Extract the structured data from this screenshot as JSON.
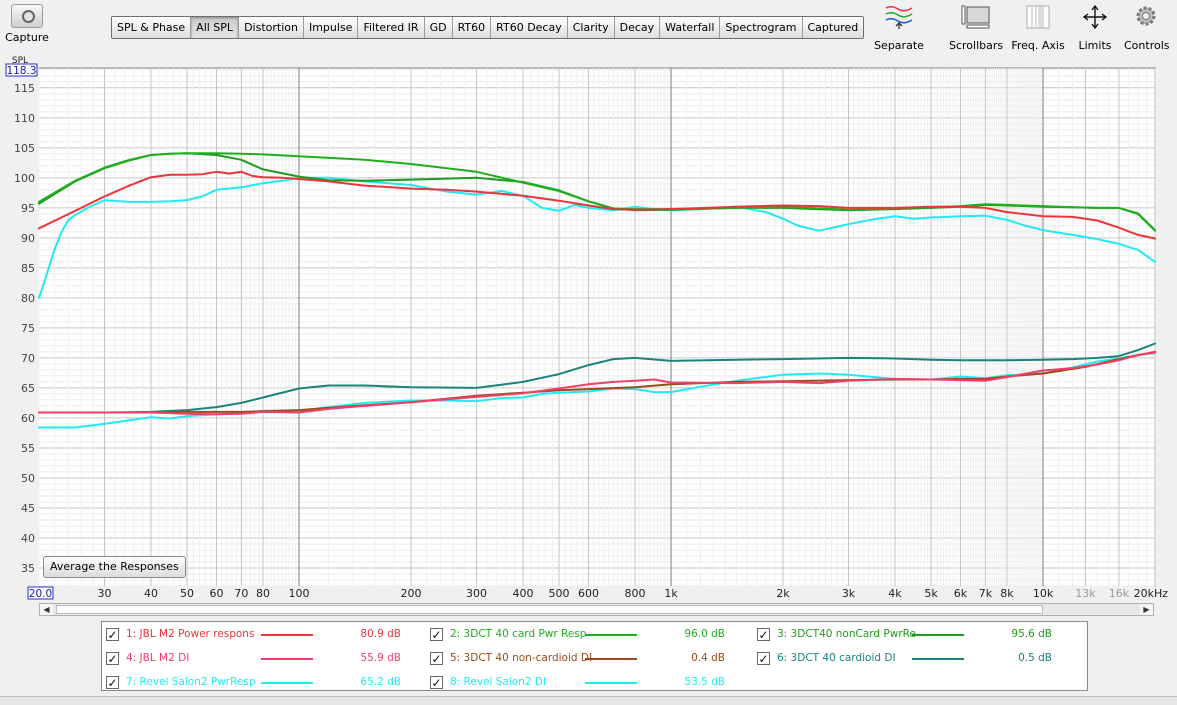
{
  "toolbar": {
    "capture_label": "Capture",
    "tabs": [
      "SPL & Phase",
      "All SPL",
      "Distortion",
      "Impulse",
      "Filtered IR",
      "GD",
      "RT60",
      "RT60 Decay",
      "Clarity",
      "Decay",
      "Waterfall",
      "Spectrogram",
      "Captured"
    ],
    "active_tab": "All SPL",
    "tools": [
      {
        "label": "Separate",
        "icon": "separate-icon"
      },
      {
        "label": "Scrollbars",
        "icon": "scrollbars-icon"
      },
      {
        "label": "Freq. Axis",
        "icon": "freq-axis-icon"
      },
      {
        "label": "Limits",
        "icon": "limits-icon"
      },
      {
        "label": "Controls",
        "icon": "gear-icon"
      }
    ]
  },
  "average_button": "Average the Responses",
  "colors": {
    "jbl_pwr": "#e8363c",
    "dct_card": "#1eae1e",
    "dct_noncard": "#1f9b1f",
    "jbl_di": "#ef3f6a",
    "dct_noncard_di": "#9e4a1c",
    "dct_card_di": "#19837c",
    "revel_pwr": "#22eaf0",
    "revel_di": "#22eaf0"
  },
  "legend": [
    {
      "label": "1: JBL M2 Power respons",
      "value": "80.9 dB",
      "color_key": "jbl_pwr"
    },
    {
      "label": "2: 3DCT 40 card Pwr Resp",
      "value": "96.0 dB",
      "color_key": "dct_card"
    },
    {
      "label": "3: 3DCT40 nonCard PwrRe",
      "value": "95.6 dB",
      "color_key": "dct_noncard"
    },
    {
      "label": "4: JBL M2 DI",
      "value": "55.9 dB",
      "color_key": "jbl_di"
    },
    {
      "label": "5: 3DCT 40 non-cardioid DI",
      "value": "0.4 dB",
      "color_key": "dct_noncard_di"
    },
    {
      "label": "6: 3DCT 40 cardioid DI",
      "value": "0.5 dB",
      "color_key": "dct_card_di"
    },
    {
      "label": "7: Revel Salon2 PwrResp",
      "value": "65.2 dB",
      "color_key": "revel_pwr"
    },
    {
      "label": "8: Revel Salon2 DI",
      "value": "53.5 dB",
      "color_key": "revel_di"
    }
  ],
  "chart_data": {
    "type": "line",
    "ylabel": "SPL",
    "y_top_readout": "118.3",
    "x_left_readout": "20.0",
    "ylim": [
      32,
      118.3
    ],
    "xlim": [
      20,
      20000
    ],
    "x_scale": "log",
    "y_ticks": [
      35,
      40,
      45,
      50,
      55,
      60,
      65,
      70,
      75,
      80,
      85,
      90,
      95,
      100,
      105,
      110,
      115
    ],
    "x_ticks": [
      {
        "v": 30,
        "t": "30"
      },
      {
        "v": 40,
        "t": "40"
      },
      {
        "v": 50,
        "t": "50"
      },
      {
        "v": 60,
        "t": "60"
      },
      {
        "v": 70,
        "t": "70"
      },
      {
        "v": 80,
        "t": "80"
      },
      {
        "v": 100,
        "t": "100"
      },
      {
        "v": 200,
        "t": "200"
      },
      {
        "v": 300,
        "t": "300"
      },
      {
        "v": 400,
        "t": "400"
      },
      {
        "v": 500,
        "t": "500"
      },
      {
        "v": 600,
        "t": "600"
      },
      {
        "v": 800,
        "t": "800"
      },
      {
        "v": 1000,
        "t": "1k"
      },
      {
        "v": 2000,
        "t": "2k"
      },
      {
        "v": 3000,
        "t": "3k"
      },
      {
        "v": 4000,
        "t": "4k"
      },
      {
        "v": 5000,
        "t": "5k"
      },
      {
        "v": 6000,
        "t": "6k"
      },
      {
        "v": 7000,
        "t": "7k"
      },
      {
        "v": 8000,
        "t": "8k"
      },
      {
        "v": 10000,
        "t": "10k"
      },
      {
        "v": 13000,
        "t": "13k",
        "dim": true
      },
      {
        "v": 16000,
        "t": "16k",
        "dim": true
      },
      {
        "v": 20000,
        "t": "20kHz"
      }
    ],
    "grid": true,
    "series": [
      {
        "name": "1: JBL M2 Power respons",
        "color_key": "jbl_pwr",
        "x": [
          20,
          25,
          30,
          35,
          40,
          45,
          50,
          55,
          60,
          65,
          70,
          75,
          80,
          90,
          100,
          120,
          150,
          200,
          250,
          300,
          400,
          500,
          600,
          700,
          800,
          1000,
          1500,
          2000,
          2500,
          3000,
          4000,
          5000,
          6000,
          7000,
          8000,
          10000,
          12000,
          14000,
          16000,
          18000,
          20000
        ],
        "y": [
          91.6,
          94.5,
          96.9,
          98.7,
          100.1,
          100.5,
          100.5,
          100.6,
          101.0,
          100.7,
          101.0,
          100.3,
          100.1,
          100.0,
          99.8,
          99.4,
          98.7,
          98.2,
          98.0,
          97.7,
          97.0,
          96.2,
          95.4,
          94.8,
          94.7,
          94.8,
          95.2,
          95.4,
          95.3,
          95.0,
          95.0,
          95.2,
          95.2,
          95.0,
          94.3,
          93.6,
          93.5,
          92.9,
          91.7,
          90.5,
          89.9
        ]
      },
      {
        "name": "2: 3DCT 40 card Pwr Resp",
        "color_key": "dct_card",
        "x": [
          20,
          25,
          30,
          35,
          40,
          45,
          50,
          60,
          70,
          80,
          100,
          150,
          200,
          300,
          400,
          500,
          600,
          700,
          800,
          1000,
          1500,
          2000,
          3000,
          4000,
          5000,
          6000,
          7000,
          8000,
          10000,
          12000,
          14000,
          16000,
          18000,
          20000
        ],
        "y": [
          96.0,
          99.5,
          101.7,
          103.0,
          103.8,
          104.0,
          104.1,
          104.1,
          104.0,
          103.9,
          103.6,
          103.0,
          102.3,
          101.0,
          99.2,
          97.8,
          96.1,
          94.9,
          94.8,
          94.8,
          95.0,
          95.2,
          94.7,
          94.9,
          95.1,
          95.3,
          95.6,
          95.5,
          95.3,
          95.1,
          95.0,
          95.0,
          94.1,
          91.3
        ]
      },
      {
        "name": "3: 3DCT40 nonCard PwrRe",
        "color_key": "dct_noncard",
        "x": [
          20,
          25,
          30,
          35,
          40,
          45,
          50,
          60,
          70,
          80,
          100,
          120,
          150,
          200,
          300,
          400,
          500,
          600,
          700,
          800,
          1000,
          1500,
          2000,
          3000,
          4000,
          5000,
          6000,
          7000,
          8000,
          10000,
          12000,
          14000,
          16000,
          18000,
          20000
        ],
        "y": [
          95.7,
          99.4,
          101.6,
          102.9,
          103.8,
          104.0,
          104.1,
          103.8,
          103.0,
          101.4,
          100.2,
          99.6,
          99.5,
          99.7,
          100.0,
          99.3,
          97.9,
          96.1,
          94.9,
          94.6,
          94.7,
          95.0,
          95.0,
          94.6,
          94.8,
          95.0,
          95.2,
          95.5,
          95.4,
          95.2,
          95.1,
          95.0,
          95.0,
          94.0,
          91.2
        ]
      },
      {
        "name": "4: JBL M2 DI",
        "color_key": "jbl_di",
        "x": [
          20,
          30,
          40,
          50,
          60,
          70,
          80,
          100,
          120,
          150,
          200,
          300,
          400,
          500,
          600,
          700,
          800,
          900,
          1000,
          1500,
          2000,
          2500,
          3000,
          4000,
          5000,
          6000,
          7000,
          8000,
          10000,
          12000,
          14000,
          16000,
          18000,
          20000
        ],
        "y": [
          60.9,
          60.9,
          60.9,
          60.7,
          60.6,
          60.7,
          61.0,
          60.9,
          61.5,
          62.0,
          62.6,
          63.5,
          64.1,
          64.9,
          65.6,
          66.0,
          66.2,
          66.4,
          65.9,
          65.8,
          66.0,
          65.8,
          66.2,
          66.5,
          66.4,
          66.3,
          66.2,
          66.8,
          67.9,
          68.3,
          68.9,
          69.6,
          70.5,
          70.9
        ]
      },
      {
        "name": "5: 3DCT 40 non-cardioid DI",
        "color_key": "dct_noncard_di",
        "x": [
          20,
          30,
          40,
          50,
          60,
          70,
          80,
          100,
          150,
          200,
          300,
          400,
          500,
          600,
          800,
          1000,
          1500,
          2000,
          3000,
          4000,
          5000,
          6000,
          7000,
          8000,
          10000,
          13000,
          16000,
          20000
        ],
        "y": [
          60.9,
          60.9,
          60.9,
          61.0,
          61.0,
          61.0,
          61.1,
          61.3,
          62.1,
          62.6,
          63.7,
          64.2,
          64.6,
          64.8,
          65.1,
          65.6,
          66.0,
          66.1,
          66.3,
          66.4,
          66.4,
          66.5,
          66.5,
          66.9,
          67.4,
          68.5,
          69.8,
          71.0
        ]
      },
      {
        "name": "6: 3DCT 40 cardioid DI",
        "color_key": "dct_card_di",
        "x": [
          20,
          30,
          40,
          50,
          60,
          70,
          80,
          100,
          120,
          150,
          200,
          300,
          400,
          500,
          600,
          700,
          800,
          1000,
          1500,
          2000,
          3000,
          4000,
          5000,
          6000,
          7000,
          8000,
          10000,
          12000,
          14000,
          16000,
          18000,
          20000
        ],
        "y": [
          60.9,
          60.9,
          61.0,
          61.3,
          61.8,
          62.5,
          63.4,
          64.9,
          65.4,
          65.4,
          65.1,
          65.0,
          66.0,
          67.3,
          68.8,
          69.8,
          70.0,
          69.5,
          69.7,
          69.8,
          70.0,
          69.9,
          69.7,
          69.6,
          69.6,
          69.6,
          69.7,
          69.8,
          70.0,
          70.3,
          71.3,
          72.4
        ]
      },
      {
        "name": "7: Revel Salon2 PwrResp",
        "color_key": "revel_pwr",
        "x": [
          20,
          21,
          22,
          23,
          24,
          25,
          27,
          30,
          33,
          35,
          40,
          45,
          50,
          55,
          60,
          70,
          80,
          90,
          100,
          120,
          150,
          200,
          250,
          300,
          350,
          400,
          450,
          500,
          550,
          600,
          700,
          800,
          900,
          1000,
          1200,
          1500,
          1800,
          2000,
          2200,
          2500,
          3000,
          3500,
          4000,
          4500,
          5000,
          6000,
          7000,
          8000,
          9000,
          10000,
          12000,
          14000,
          16000,
          18000,
          20000
        ],
        "y": [
          80.0,
          84.0,
          88.0,
          91.0,
          93.0,
          93.8,
          95.0,
          96.3,
          96.1,
          96.0,
          96.0,
          96.1,
          96.3,
          96.9,
          98.0,
          98.4,
          99.1,
          99.5,
          100.0,
          100.0,
          99.4,
          98.8,
          97.7,
          97.2,
          97.8,
          97.0,
          95.0,
          94.5,
          95.5,
          95.0,
          94.6,
          95.2,
          94.8,
          94.6,
          94.8,
          95.2,
          94.3,
          93.2,
          92.0,
          91.2,
          92.3,
          93.1,
          93.6,
          93.2,
          93.4,
          93.6,
          93.7,
          93.0,
          92.0,
          91.3,
          90.5,
          89.8,
          89.0,
          88.0,
          86.0
        ]
      },
      {
        "name": "8: Revel Salon2 DI",
        "color_key": "revel_di",
        "x": [
          20,
          25,
          30,
          35,
          40,
          45,
          50,
          60,
          70,
          80,
          100,
          120,
          150,
          200,
          250,
          300,
          350,
          400,
          450,
          500,
          600,
          700,
          800,
          900,
          1000,
          1200,
          1500,
          2000,
          2500,
          3000,
          4000,
          5000,
          6000,
          7000,
          8000,
          10000,
          12000,
          14000,
          16000,
          18000,
          20000
        ],
        "y": [
          58.4,
          58.4,
          59.0,
          59.6,
          60.1,
          59.9,
          60.3,
          60.6,
          60.8,
          61.2,
          61.2,
          61.8,
          62.5,
          62.9,
          62.9,
          62.8,
          63.3,
          63.4,
          64.0,
          64.2,
          64.4,
          64.9,
          64.8,
          64.3,
          64.3,
          65.2,
          66.2,
          67.2,
          67.4,
          67.2,
          66.5,
          66.4,
          66.9,
          66.6,
          67.1,
          67.4,
          68.4,
          69.4,
          69.9,
          70.5,
          70.8
        ]
      }
    ]
  }
}
